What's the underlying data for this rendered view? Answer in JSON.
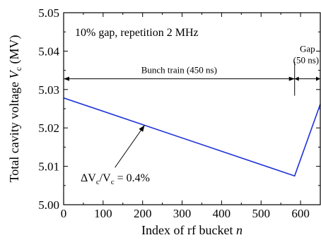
{
  "chart_data": {
    "type": "line",
    "title": "10% gap, repetition 2 MHz",
    "xlabel": "Index of rf bucket",
    "xlabel_var": "n",
    "ylabel": "Total cavity voltage",
    "ylabel_var": "V",
    "ylabel_sub": "c",
    "ylabel_unit": "(MV)",
    "xlim": [
      0,
      650
    ],
    "ylim": [
      5.0,
      5.05
    ],
    "x_ticks": [
      0,
      100,
      200,
      300,
      400,
      500,
      600
    ],
    "x_tick_labels": [
      "0",
      "100",
      "200",
      "300",
      "400",
      "500",
      "600"
    ],
    "y_ticks": [
      5.0,
      5.01,
      5.02,
      5.03,
      5.04,
      5.05
    ],
    "y_tick_labels": [
      "5.00",
      "5.01",
      "5.02",
      "5.03",
      "5.04",
      "5.05"
    ],
    "series": [
      {
        "color": "#1f33d6",
        "x": [
          0,
          585,
          650
        ],
        "y": [
          5.0278,
          5.0075,
          5.0262
        ]
      }
    ],
    "annotations": {
      "bunch_train_label": "Bunch train (450 ns)",
      "bunch_train_range": [
        0,
        585
      ],
      "gap_label": "Gap",
      "gap_duration": "(50 ns)",
      "gap_range": [
        585,
        650
      ],
      "arrow_row_y": 5.0328,
      "delta_label": "ΔV",
      "delta_sub_1": "c",
      "delta_mid": "/V",
      "delta_sub_2": "c",
      "delta_value": " = 0.4%",
      "delta_arrow_from": [
        130,
        5.0097
      ],
      "delta_arrow_to": [
        205,
        5.0207
      ]
    },
    "grid": false,
    "legend": "none"
  }
}
